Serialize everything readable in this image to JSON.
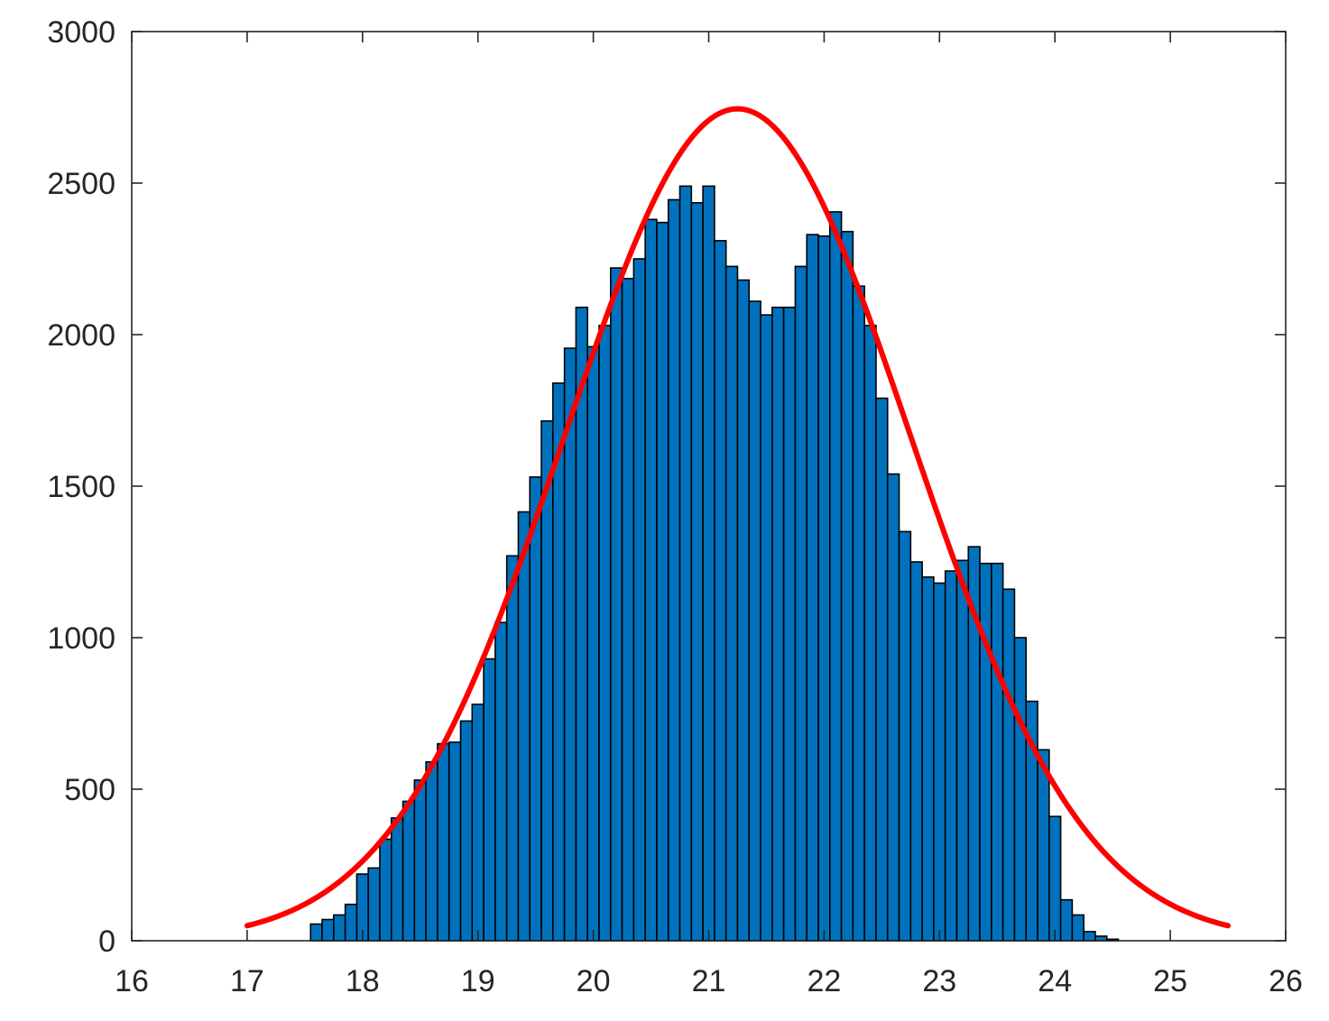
{
  "chart_data": {
    "type": "bar",
    "title": "",
    "xlabel": "",
    "ylabel": "",
    "xlim": [
      16,
      26
    ],
    "ylim": [
      0,
      3000
    ],
    "grid": false,
    "legend": "none",
    "x_ticks": [
      "16",
      "17",
      "18",
      "19",
      "20",
      "21",
      "22",
      "23",
      "24",
      "25",
      "26"
    ],
    "y_ticks": [
      "0",
      "500",
      "1000",
      "1500",
      "2000",
      "2500",
      "3000"
    ],
    "bar_color": "#0072BD",
    "bar_edge_color": "#000000",
    "curve_color": "#FF0000",
    "histogram": {
      "bin_start": 17.55,
      "bin_width": 0.1,
      "counts": [
        55,
        70,
        85,
        120,
        220,
        240,
        335,
        405,
        460,
        530,
        590,
        650,
        655,
        725,
        780,
        930,
        1050,
        1270,
        1415,
        1530,
        1715,
        1840,
        1955,
        2090,
        1960,
        2030,
        2220,
        2185,
        2250,
        2380,
        2370,
        2445,
        2490,
        2435,
        2490,
        2310,
        2225,
        2180,
        2110,
        2065,
        2090,
        2090,
        2225,
        2330,
        2325,
        2405,
        2340,
        2160,
        2030,
        1790,
        1540,
        1350,
        1250,
        1200,
        1180,
        1220,
        1255,
        1300,
        1245,
        1245,
        1160,
        1000,
        790,
        630,
        410,
        135,
        85,
        30,
        15,
        5
      ]
    },
    "fit": {
      "type": "normal",
      "x_range": [
        17.0,
        25.5
      ],
      "mean": 21.25,
      "sigma": 1.5,
      "peak": 2745
    }
  }
}
